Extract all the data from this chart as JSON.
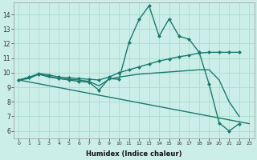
{
  "title": "",
  "xlabel": "Humidex (Indice chaleur)",
  "background_color": "#cceee8",
  "grid_color": "#aaddcc",
  "line_color": "#1a7a6e",
  "xlim": [
    -0.5,
    23.5
  ],
  "ylim": [
    5.5,
    14.8
  ],
  "xticks": [
    0,
    1,
    2,
    3,
    4,
    5,
    6,
    7,
    8,
    9,
    10,
    11,
    12,
    13,
    14,
    15,
    16,
    17,
    18,
    19,
    20,
    21,
    22,
    23
  ],
  "yticks": [
    6,
    7,
    8,
    9,
    10,
    11,
    12,
    13,
    14
  ],
  "series_spiky": {
    "x": [
      0,
      1,
      2,
      3,
      4,
      5,
      6,
      7,
      8,
      9,
      10,
      11,
      12,
      13,
      14,
      15,
      16,
      17,
      18,
      19,
      20,
      21,
      22
    ],
    "y": [
      9.5,
      9.7,
      9.9,
      9.75,
      9.6,
      9.5,
      9.4,
      9.35,
      8.8,
      9.6,
      9.55,
      12.1,
      13.65,
      14.6,
      12.5,
      13.7,
      12.5,
      12.3,
      11.4,
      9.2,
      6.55,
      6.0,
      6.5
    ]
  },
  "series_rising": {
    "x": [
      0,
      1,
      2,
      3,
      4,
      5,
      6,
      7,
      8,
      9,
      10,
      11,
      12,
      13,
      14,
      15,
      16,
      17,
      18,
      19,
      20,
      21,
      22
    ],
    "y": [
      9.5,
      9.65,
      9.95,
      9.85,
      9.7,
      9.65,
      9.6,
      9.55,
      9.5,
      9.7,
      10.0,
      10.2,
      10.4,
      10.6,
      10.8,
      10.95,
      11.1,
      11.2,
      11.35,
      11.4,
      11.4,
      11.4,
      11.4
    ]
  },
  "series_diagonal": {
    "x": [
      0,
      23
    ],
    "y": [
      9.5,
      6.5
    ]
  },
  "series_mid": {
    "x": [
      0,
      1,
      2,
      3,
      4,
      5,
      6,
      7,
      8,
      9,
      10,
      11,
      12,
      13,
      14,
      15,
      16,
      17,
      18,
      19,
      20,
      21,
      22
    ],
    "y": [
      9.5,
      9.6,
      9.9,
      9.7,
      9.6,
      9.55,
      9.5,
      9.4,
      9.1,
      9.55,
      9.7,
      9.8,
      9.9,
      9.95,
      10.0,
      10.05,
      10.1,
      10.15,
      10.2,
      10.2,
      9.5,
      8.0,
      7.0
    ]
  },
  "marker": "D",
  "markersize": 2.5,
  "linewidth": 1.0
}
